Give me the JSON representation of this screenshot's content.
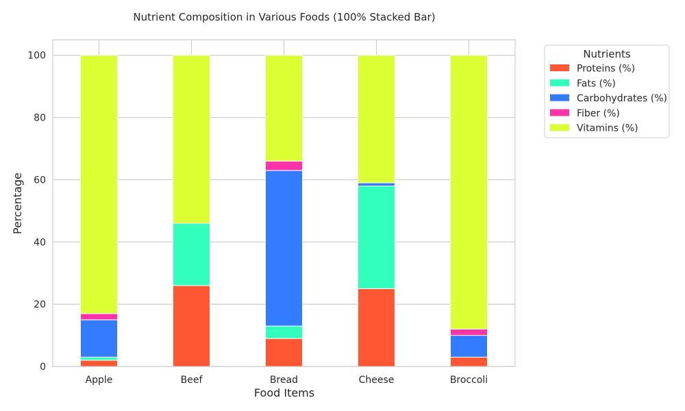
{
  "chart_data": {
    "type": "bar",
    "stacked": true,
    "title": "Nutrient Composition in Various Foods (100% Stacked Bar)",
    "xlabel": "Food Items",
    "ylabel": "Percentage",
    "ylim": [
      0,
      105
    ],
    "yticks": [
      0,
      20,
      40,
      60,
      80,
      100
    ],
    "grid": true,
    "legend": {
      "title": "Nutrients",
      "placement": "outside-top-right"
    },
    "categories": [
      "Apple",
      "Beef",
      "Bread",
      "Cheese",
      "Broccoli"
    ],
    "series": [
      {
        "name": "Proteins (%)",
        "color": "#ff5733",
        "values": [
          2,
          26,
          9,
          25,
          3
        ]
      },
      {
        "name": "Fats (%)",
        "color": "#33ffbd",
        "values": [
          1,
          20,
          4,
          33,
          0
        ]
      },
      {
        "name": "Carbohydrates (%)",
        "color": "#337bff",
        "values": [
          12,
          0,
          50,
          1,
          7
        ]
      },
      {
        "name": "Fiber (%)",
        "color": "#ff33a8",
        "values": [
          2,
          0,
          3,
          0,
          2
        ]
      },
      {
        "name": "Vitamins (%)",
        "color": "#dbff33",
        "values": [
          83,
          54,
          34,
          41,
          88
        ]
      }
    ]
  }
}
